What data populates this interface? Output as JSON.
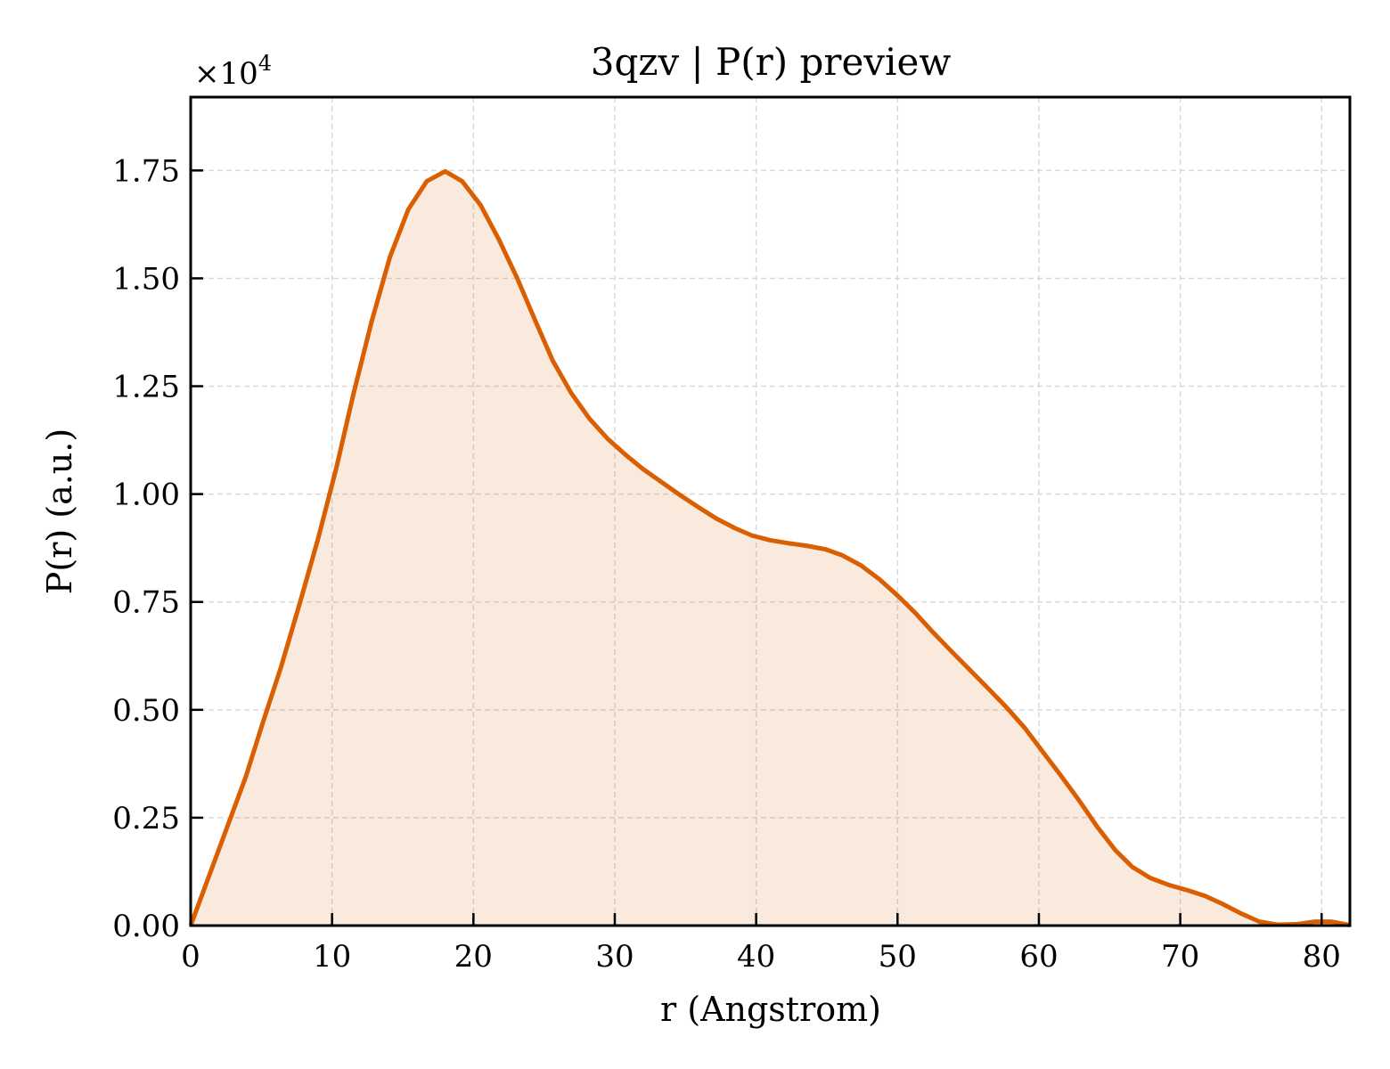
{
  "chart_data": {
    "type": "area",
    "title": "3qzv | P(r) preview",
    "xlabel": "r (Angstrom)",
    "ylabel": "P(r) (a.u.)",
    "y_multiplier": {
      "base": "×10",
      "exponent": "4"
    },
    "xlim": [
      0,
      82
    ],
    "ylim": [
      0,
      19200
    ],
    "x_ticks": [
      0,
      10,
      20,
      30,
      40,
      50,
      60,
      70,
      80
    ],
    "x_tick_labels": [
      "0",
      "10",
      "20",
      "30",
      "40",
      "50",
      "60",
      "70",
      "80"
    ],
    "y_ticks": [
      0,
      2500,
      5000,
      7500,
      10000,
      12500,
      15000,
      17500
    ],
    "y_tick_labels": [
      "0.00",
      "0.25",
      "0.50",
      "0.75",
      "1.00",
      "1.25",
      "1.50",
      "1.75"
    ],
    "grid": true,
    "tick_direction": "in",
    "series": [
      {
        "color": "#d95f02",
        "fill_color": "#d95f02",
        "fill_opacity": 0.13,
        "x": [
          0,
          1.3,
          2.6,
          3.9,
          5.1,
          6.4,
          7.7,
          9.0,
          10.3,
          11.5,
          12.8,
          14.1,
          15.4,
          16.7,
          18.0,
          19.2,
          20.5,
          21.8,
          23.1,
          24.4,
          25.6,
          26.9,
          28.2,
          29.5,
          30.8,
          32.0,
          33.3,
          34.6,
          35.9,
          37.2,
          38.5,
          39.7,
          41.0,
          42.3,
          43.6,
          44.9,
          46.1,
          47.4,
          48.7,
          50.0,
          51.3,
          52.5,
          53.8,
          55.1,
          56.4,
          57.7,
          59.0,
          60.2,
          61.5,
          62.8,
          64.1,
          65.4,
          66.6,
          67.9,
          69.2,
          70.5,
          71.8,
          73.0,
          74.3,
          75.6,
          76.9,
          78.2,
          79.5,
          80.7,
          82.0
        ],
        "y": [
          0,
          1150,
          2300,
          3450,
          4700,
          6000,
          7450,
          8950,
          10600,
          12300,
          14000,
          15500,
          16600,
          17250,
          17480,
          17250,
          16700,
          15900,
          15000,
          14000,
          13100,
          12350,
          11750,
          11280,
          10900,
          10580,
          10280,
          9980,
          9700,
          9430,
          9210,
          9040,
          8930,
          8860,
          8800,
          8720,
          8580,
          8350,
          8030,
          7650,
          7230,
          6800,
          6360,
          5930,
          5500,
          5060,
          4580,
          4060,
          3500,
          2920,
          2300,
          1750,
          1360,
          1100,
          940,
          820,
          680,
          500,
          280,
          90,
          20,
          30,
          90,
          90,
          10
        ]
      }
    ]
  }
}
